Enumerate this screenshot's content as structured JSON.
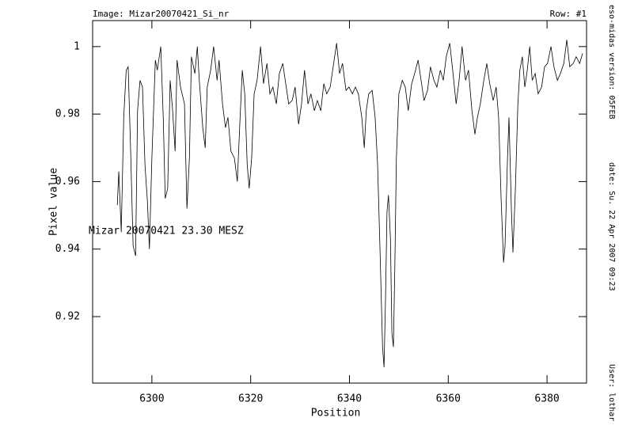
{
  "chart_data": {
    "type": "line",
    "header_left": "Image: Mizar20070421_Si_nr",
    "header_right": "Row: #1",
    "side_texts": [
      "eso-midas version: 05FEB",
      "date: Su. 22 Apr 2007 09:23",
      "User: lothar"
    ],
    "annotation": "Mizar 20070421 23.30 MESZ",
    "x_label": "Position",
    "y_label": "Pixel value",
    "xlim": [
      6288,
      6388
    ],
    "ylim": [
      0.9003,
      1.0077
    ],
    "xticks": [
      6300,
      6320,
      6340,
      6360,
      6380
    ],
    "yticks": [
      0.92,
      0.94,
      0.96,
      0.98,
      1
    ],
    "grid": false,
    "color": "#000000",
    "x": [
      6293.0,
      6293.3,
      6293.8,
      6294.3,
      6294.8,
      6295.2,
      6295.7,
      6296.2,
      6296.7,
      6297.1,
      6297.6,
      6298.1,
      6298.6,
      6299.1,
      6299.5,
      6300.0,
      6300.7,
      6301.1,
      6301.8,
      6302.3,
      6302.7,
      6303.2,
      6303.7,
      6304.2,
      6304.7,
      6305.1,
      6305.8,
      6306.6,
      6307.1,
      6307.6,
      6308.0,
      6308.7,
      6309.2,
      6309.6,
      6310.3,
      6310.8,
      6311.2,
      6311.9,
      6312.5,
      6313.2,
      6313.6,
      6314.3,
      6314.9,
      6315.4,
      6316.0,
      6316.7,
      6317.3,
      6317.8,
      6318.3,
      6318.8,
      6319.3,
      6319.7,
      6320.2,
      6320.7,
      6321.3,
      6322.0,
      6322.6,
      6323.3,
      6323.9,
      6324.5,
      6325.2,
      6325.8,
      6326.5,
      6327.1,
      6327.7,
      6328.4,
      6329.0,
      6329.7,
      6330.3,
      6330.9,
      6331.6,
      6332.2,
      6332.9,
      6333.5,
      6334.2,
      6334.8,
      6335.4,
      6336.1,
      6336.7,
      6337.4,
      6338.0,
      6338.6,
      6339.3,
      6339.9,
      6340.6,
      6341.2,
      6341.8,
      6342.5,
      6343.0,
      6343.4,
      6343.9,
      6344.6,
      6345.2,
      6345.7,
      6346.2,
      6346.7,
      6347.0,
      6347.3,
      6347.6,
      6347.9,
      6348.3,
      6348.6,
      6348.9,
      6349.2,
      6349.5,
      6350.0,
      6350.7,
      6351.3,
      6351.9,
      6352.6,
      6353.2,
      6353.9,
      6354.5,
      6355.1,
      6355.8,
      6356.4,
      6357.1,
      6357.7,
      6358.4,
      6359.0,
      6359.6,
      6360.3,
      6360.9,
      6361.6,
      6362.2,
      6362.8,
      6363.5,
      6364.1,
      6364.8,
      6365.4,
      6365.9,
      6366.5,
      6367.2,
      6367.8,
      6368.4,
      6369.1,
      6369.7,
      6370.2,
      6370.7,
      6371.2,
      6371.5,
      6372.0,
      6372.3,
      6372.8,
      6373.1,
      6373.6,
      6374.1,
      6374.5,
      6375.0,
      6375.5,
      6376.0,
      6376.5,
      6377.0,
      6377.6,
      6378.2,
      6378.9,
      6379.5,
      6380.1,
      6380.8,
      6381.4,
      6382.1,
      6382.7,
      6383.4,
      6384.0,
      6384.6,
      6385.3,
      6385.9,
      6386.6,
      6387.2
    ],
    "values": [
      0.953,
      0.963,
      0.945,
      0.979,
      0.993,
      0.994,
      0.969,
      0.941,
      0.938,
      0.981,
      0.99,
      0.988,
      0.965,
      0.954,
      0.94,
      0.967,
      0.996,
      0.993,
      1.0,
      0.979,
      0.955,
      0.958,
      0.99,
      0.981,
      0.969,
      0.996,
      0.988,
      0.983,
      0.952,
      0.967,
      0.997,
      0.992,
      1.0,
      0.99,
      0.976,
      0.97,
      0.988,
      0.993,
      1.0,
      0.99,
      0.996,
      0.983,
      0.976,
      0.979,
      0.969,
      0.967,
      0.96,
      0.977,
      0.993,
      0.986,
      0.965,
      0.958,
      0.967,
      0.986,
      0.99,
      1.0,
      0.989,
      0.995,
      0.986,
      0.988,
      0.983,
      0.992,
      0.995,
      0.989,
      0.983,
      0.984,
      0.988,
      0.977,
      0.983,
      0.993,
      0.983,
      0.986,
      0.981,
      0.984,
      0.981,
      0.989,
      0.986,
      0.988,
      0.994,
      1.001,
      0.992,
      0.995,
      0.987,
      0.988,
      0.986,
      0.988,
      0.986,
      0.979,
      0.97,
      0.981,
      0.986,
      0.987,
      0.979,
      0.965,
      0.939,
      0.911,
      0.905,
      0.925,
      0.951,
      0.956,
      0.943,
      0.915,
      0.911,
      0.936,
      0.967,
      0.986,
      0.99,
      0.988,
      0.981,
      0.989,
      0.992,
      0.996,
      0.99,
      0.984,
      0.987,
      0.994,
      0.99,
      0.988,
      0.993,
      0.99,
      0.997,
      1.001,
      0.993,
      0.983,
      0.99,
      1.0,
      0.99,
      0.993,
      0.981,
      0.974,
      0.979,
      0.983,
      0.99,
      0.995,
      0.989,
      0.984,
      0.988,
      0.979,
      0.955,
      0.936,
      0.941,
      0.967,
      0.979,
      0.951,
      0.939,
      0.958,
      0.983,
      0.993,
      0.997,
      0.988,
      0.993,
      1.0,
      0.99,
      0.992,
      0.986,
      0.988,
      0.994,
      0.995,
      1.0,
      0.994,
      0.99,
      0.992,
      0.995,
      1.002,
      0.994,
      0.995,
      0.997,
      0.995,
      0.998
    ]
  }
}
